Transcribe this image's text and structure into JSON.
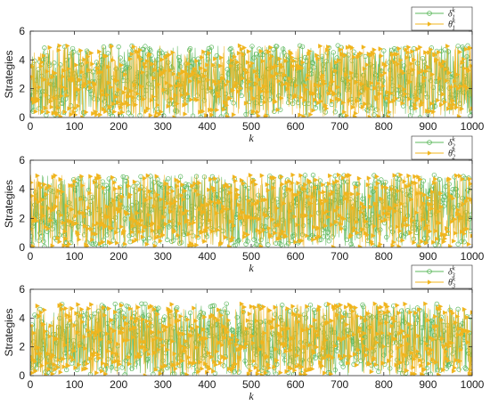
{
  "chart_data": [
    {
      "type": "line",
      "xlabel": "k",
      "ylabel": "Strategies",
      "xlim": [
        0,
        1000
      ],
      "ylim": [
        0,
        6
      ],
      "xticks": [
        "0",
        "100",
        "200",
        "300",
        "400",
        "500",
        "600",
        "700",
        "800",
        "900",
        "1000"
      ],
      "yticks": [
        "0",
        "2",
        "4",
        "6"
      ],
      "legend_position": "top-right",
      "grid": false,
      "series": [
        {
          "name": "δ1k",
          "base": "δ",
          "sub": "1",
          "sup": "k",
          "color": "#5cb85c",
          "marker": "circle",
          "range": [
            0,
            5
          ],
          "seed": 11
        },
        {
          "name": "θ1k",
          "base": "θ",
          "sub": "1",
          "sup": "k",
          "color": "#f0b51e",
          "marker": "triangle-right",
          "range": [
            0,
            5
          ],
          "seed": 23
        }
      ]
    },
    {
      "type": "line",
      "xlabel": "k",
      "ylabel": "Strategies",
      "xlim": [
        0,
        1000
      ],
      "ylim": [
        0,
        6
      ],
      "xticks": [
        "0",
        "100",
        "200",
        "300",
        "400",
        "500",
        "600",
        "700",
        "800",
        "900",
        "1000"
      ],
      "yticks": [
        "0",
        "2",
        "4",
        "6"
      ],
      "legend_position": "top-right",
      "grid": false,
      "series": [
        {
          "name": "δ2k",
          "base": "δ",
          "sub": "2",
          "sup": "k",
          "color": "#5cb85c",
          "marker": "circle",
          "range": [
            0,
            5
          ],
          "seed": 37
        },
        {
          "name": "θ2k",
          "base": "θ",
          "sub": "2",
          "sup": "k",
          "color": "#f0b51e",
          "marker": "triangle-right",
          "range": [
            0,
            5
          ],
          "seed": 41
        }
      ]
    },
    {
      "type": "line",
      "xlabel": "k",
      "ylabel": "Strategies",
      "xlim": [
        0,
        1000
      ],
      "ylim": [
        0,
        6
      ],
      "xticks": [
        "0",
        "100",
        "200",
        "300",
        "400",
        "500",
        "600",
        "700",
        "800",
        "900",
        "1000"
      ],
      "yticks": [
        "0",
        "2",
        "4",
        "6"
      ],
      "legend_position": "top-right",
      "grid": false,
      "series": [
        {
          "name": "δ3k",
          "base": "δ",
          "sub": "3",
          "sup": "k",
          "color": "#5cb85c",
          "marker": "circle",
          "range": [
            0,
            5
          ],
          "seed": 53
        },
        {
          "name": "θ3k",
          "base": "θ",
          "sub": "3",
          "sup": "k",
          "color": "#f0b51e",
          "marker": "triangle-right",
          "range": [
            0,
            5
          ],
          "seed": 67
        }
      ]
    }
  ]
}
